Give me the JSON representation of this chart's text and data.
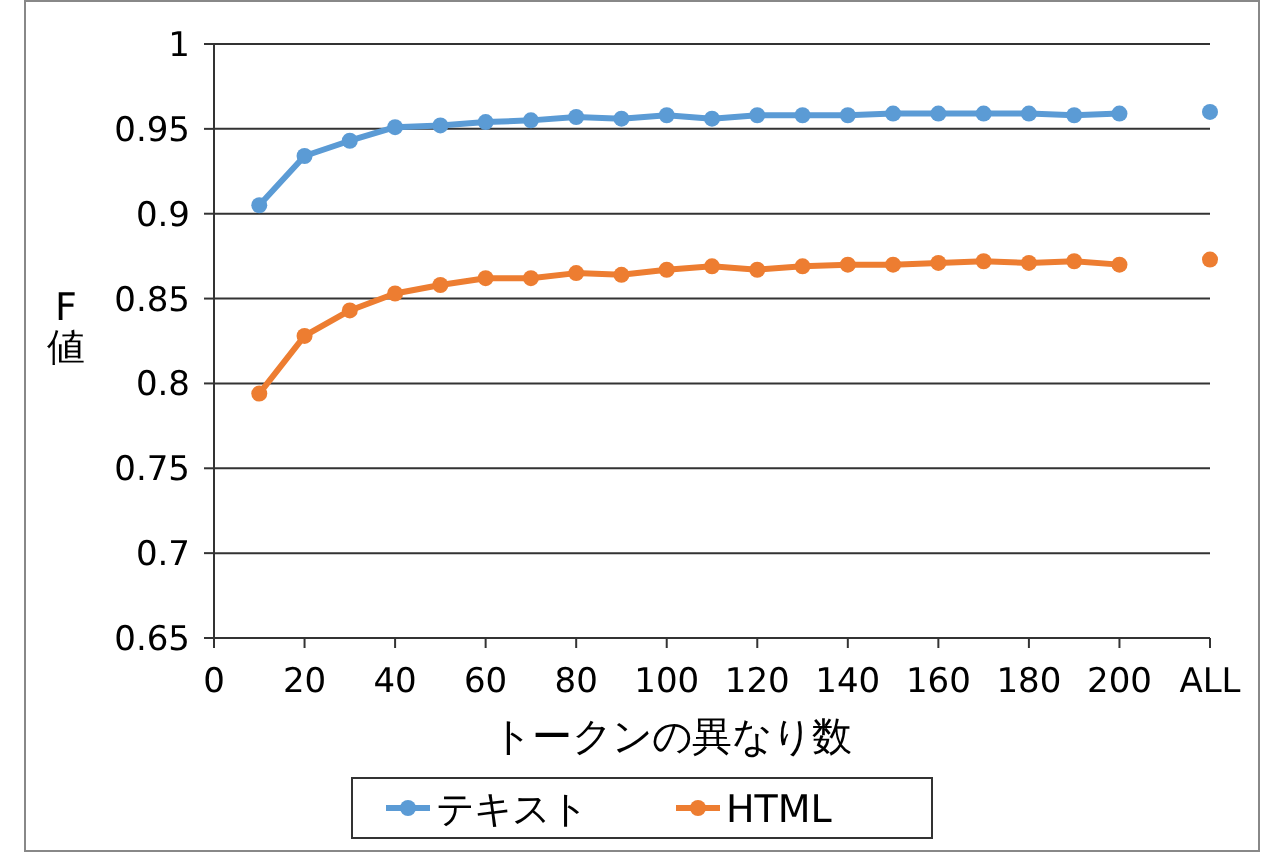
{
  "chart_data": {
    "type": "line",
    "xlabel": "トークンの異なり数",
    "ylabel": "F値",
    "x": [
      10,
      20,
      30,
      40,
      50,
      60,
      70,
      80,
      90,
      100,
      110,
      120,
      130,
      140,
      150,
      160,
      170,
      180,
      190,
      200
    ],
    "series": [
      {
        "name": "テキスト",
        "color": "#5b9bd5",
        "values": [
          0.905,
          0.934,
          0.943,
          0.951,
          0.952,
          0.954,
          0.955,
          0.957,
          0.956,
          0.958,
          0.956,
          0.958,
          0.958,
          0.958,
          0.959,
          0.959,
          0.959,
          0.959,
          0.958,
          0.959
        ]
      },
      {
        "name": "HTML",
        "color": "#ed7d31",
        "values": [
          0.794,
          0.828,
          0.843,
          0.853,
          0.858,
          0.862,
          0.862,
          0.865,
          0.864,
          0.867,
          0.869,
          0.867,
          0.869,
          0.87,
          0.87,
          0.871,
          0.872,
          0.871,
          0.872,
          0.87
        ]
      },
      {
        "type": "scatter",
        "color": "#5b9bd5",
        "x": [
          220
        ],
        "values": [
          0.96
        ]
      },
      {
        "type": "scatter",
        "color": "#ed7d31",
        "x": [
          220
        ],
        "values": [
          0.873
        ]
      }
    ],
    "xlim": [
      0,
      220
    ],
    "xticks": [
      0,
      20,
      40,
      60,
      80,
      100,
      120,
      140,
      160,
      180,
      200,
      {
        "value": 220,
        "label": "ALL"
      }
    ],
    "ylim": [
      0.65,
      1
    ],
    "yticks": [
      0.65,
      0.7,
      0.75,
      0.8,
      0.85,
      0.9,
      0.95,
      1
    ],
    "grid": "y",
    "legend": "bottom",
    "marker": "circle",
    "line_style": "solid"
  }
}
